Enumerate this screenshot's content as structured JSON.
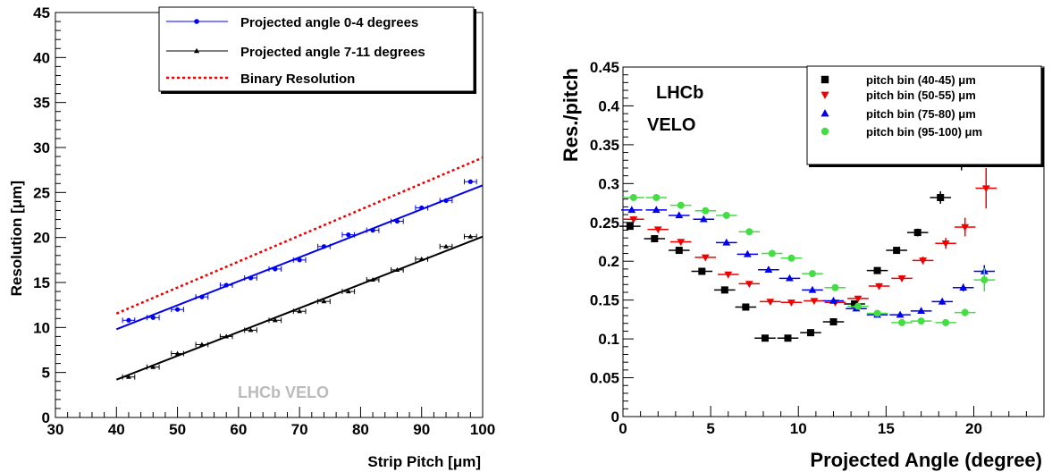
{
  "chart_data": [
    {
      "type": "scatter",
      "xlabel": "Strip Pitch [μm]",
      "ylabel": "Resolution [μm]",
      "xlim": [
        30,
        100
      ],
      "ylim": [
        0,
        45
      ],
      "xticks": [
        30,
        40,
        50,
        60,
        70,
        80,
        90,
        100
      ],
      "yticks": [
        0,
        5,
        10,
        15,
        20,
        25,
        30,
        35,
        40,
        45
      ],
      "grid": false,
      "legend_position": "top-right",
      "annotation": "LHCb VELO",
      "series": [
        {
          "name": "Projected angle 0-4 degrees",
          "color": "#0000ee",
          "marker": "circle",
          "x": [
            42,
            46,
            50,
            54,
            58,
            62,
            66,
            70,
            74,
            78,
            82,
            86,
            90,
            94,
            98
          ],
          "y": [
            10.8,
            11.1,
            12.0,
            13.4,
            14.7,
            15.5,
            16.5,
            17.5,
            19.0,
            20.3,
            20.8,
            21.8,
            23.3,
            24.1,
            26.2
          ],
          "xerr": 1.0,
          "fit": [
            [
              40,
              9.8
            ],
            [
              100,
              25.8
            ]
          ]
        },
        {
          "name": "Projected angle 7-11 degrees",
          "color": "#000000",
          "marker": "triangle",
          "x": [
            42,
            46,
            50,
            54,
            58,
            62,
            66,
            70,
            74,
            78,
            82,
            86,
            90,
            94,
            98
          ],
          "y": [
            4.5,
            5.6,
            7.1,
            8.1,
            9.0,
            9.7,
            10.8,
            11.8,
            12.9,
            14.0,
            15.3,
            16.4,
            17.6,
            19.0,
            20.1
          ],
          "xerr": 1.0,
          "fit": [
            [
              40,
              4.2
            ],
            [
              100,
              20.1
            ]
          ]
        },
        {
          "name": "Binary Resolution",
          "color": "#ee0000",
          "style": "dotted",
          "line": [
            [
              40,
              11.55
            ],
            [
              100,
              28.87
            ]
          ]
        }
      ]
    },
    {
      "type": "scatter",
      "xlabel": "Projected Angle (degree)",
      "ylabel": "Res./pitch",
      "xlim": [
        0,
        24
      ],
      "ylim": [
        0,
        0.45
      ],
      "xticks": [
        0,
        5,
        10,
        15,
        20
      ],
      "yticks": [
        0,
        0.05,
        0.1,
        0.15,
        0.2,
        0.25,
        0.3,
        0.35,
        0.4,
        0.45
      ],
      "ytick_labels": [
        "0",
        "0.05",
        "0.1",
        "0.15",
        "0.2",
        "0.25",
        "0.3",
        "0.35",
        "0.4",
        "0.45"
      ],
      "grid": false,
      "legend_position": "top-right",
      "annotation_line1": "LHCb",
      "annotation_line2": "VELO",
      "series": [
        {
          "name": "pitch bin (40-45) μm",
          "color": "#000000",
          "marker": "square",
          "x": [
            0.4,
            1.8,
            3.2,
            4.5,
            5.8,
            7.0,
            8.1,
            9.4,
            10.7,
            12.0,
            13.2,
            14.5,
            15.6,
            16.8,
            18.1,
            19.3
          ],
          "y": [
            0.245,
            0.229,
            0.214,
            0.187,
            0.163,
            0.141,
            0.101,
            0.101,
            0.108,
            0.122,
            0.145,
            0.188,
            0.214,
            0.237,
            0.282,
            0.329
          ],
          "yerr": [
            0.004,
            0.003,
            0.003,
            0.003,
            0.003,
            0.003,
            0.002,
            0.002,
            0.003,
            0.003,
            0.004,
            0.004,
            0.004,
            0.005,
            0.008,
            0.012
          ]
        },
        {
          "name": "pitch bin (50-55) μm",
          "color": "#ee0000",
          "marker": "triangle-down",
          "x": [
            0.6,
            2.0,
            3.3,
            4.7,
            6.0,
            7.2,
            8.4,
            9.6,
            10.9,
            12.1,
            13.4,
            14.6,
            15.9,
            17.1,
            18.4,
            19.5,
            20.7
          ],
          "y": [
            0.254,
            0.241,
            0.225,
            0.205,
            0.183,
            0.171,
            0.148,
            0.147,
            0.149,
            0.147,
            0.152,
            0.168,
            0.178,
            0.201,
            0.223,
            0.244,
            0.294
          ],
          "yerr": [
            0.004,
            0.003,
            0.003,
            0.003,
            0.003,
            0.003,
            0.003,
            0.003,
            0.003,
            0.003,
            0.003,
            0.004,
            0.004,
            0.005,
            0.007,
            0.012,
            0.026
          ]
        },
        {
          "name": "pitch bin (75-80) μm",
          "color": "#0000ee",
          "marker": "triangle",
          "x": [
            0.5,
            1.9,
            3.2,
            4.6,
            5.9,
            7.1,
            8.3,
            9.5,
            10.8,
            12.0,
            13.3,
            14.5,
            15.8,
            17.0,
            18.2,
            19.4,
            20.6
          ],
          "y": [
            0.266,
            0.266,
            0.259,
            0.254,
            0.224,
            0.209,
            0.189,
            0.178,
            0.163,
            0.149,
            0.139,
            0.131,
            0.131,
            0.136,
            0.148,
            0.166,
            0.187
          ],
          "yerr": [
            0.003,
            0.003,
            0.003,
            0.003,
            0.003,
            0.003,
            0.003,
            0.003,
            0.003,
            0.003,
            0.003,
            0.003,
            0.003,
            0.003,
            0.004,
            0.005,
            0.008
          ]
        },
        {
          "name": "pitch bin (95-100) μm",
          "color": "#44dd44",
          "marker": "circle",
          "x": [
            0.6,
            1.9,
            3.3,
            4.7,
            5.9,
            7.2,
            8.5,
            9.6,
            10.8,
            12.1,
            13.4,
            14.5,
            15.9,
            17.0,
            18.4,
            19.5,
            20.6
          ],
          "y": [
            0.282,
            0.282,
            0.272,
            0.265,
            0.259,
            0.238,
            0.21,
            0.204,
            0.184,
            0.166,
            0.142,
            0.133,
            0.121,
            0.123,
            0.121,
            0.134,
            0.176
          ],
          "yerr": [
            0.003,
            0.003,
            0.003,
            0.003,
            0.003,
            0.003,
            0.003,
            0.003,
            0.003,
            0.003,
            0.003,
            0.003,
            0.003,
            0.003,
            0.004,
            0.005,
            0.015
          ]
        }
      ]
    }
  ]
}
